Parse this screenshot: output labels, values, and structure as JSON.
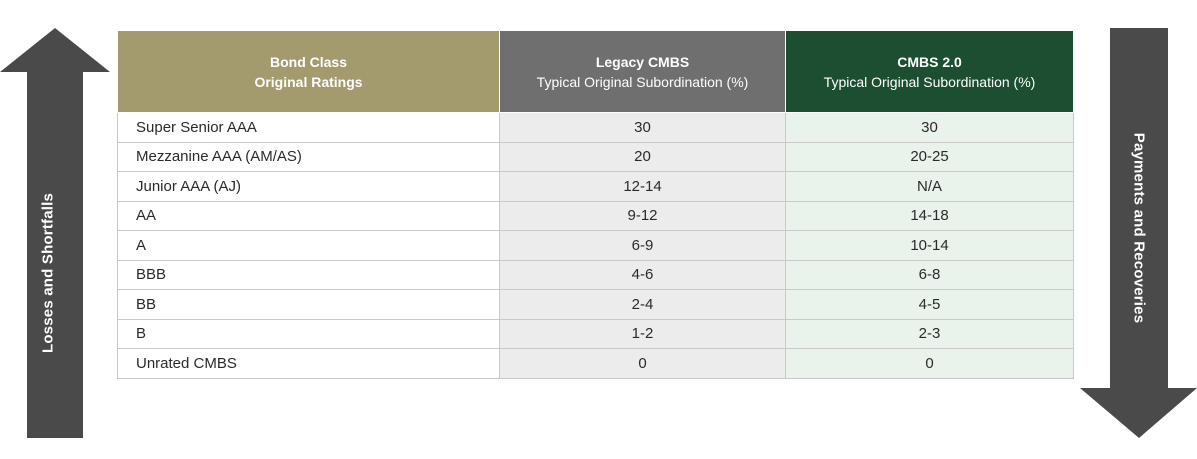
{
  "arrows": {
    "left_label": "Losses and Shortfalls",
    "right_label": "Payments and Recoveries",
    "color": "#4a4a4a"
  },
  "table": {
    "headers": [
      {
        "title": "Bond Class",
        "subtitle": "Original Ratings",
        "color": "#a39a6e"
      },
      {
        "title": "Legacy CMBS",
        "subtitle": "Typical Original Subordination (%)",
        "color": "#6f6f6f"
      },
      {
        "title": "CMBS 2.0",
        "subtitle": "Typical Original Subordination (%)",
        "color": "#1c4f32"
      }
    ],
    "rows": [
      {
        "class": "Super Senior AAA",
        "legacy": "30",
        "cmbs2": "30"
      },
      {
        "class": "Mezzanine AAA (AM/AS)",
        "legacy": "20",
        "cmbs2": "20-25"
      },
      {
        "class": "Junior AAA (AJ)",
        "legacy": "12-14",
        "cmbs2": "N/A"
      },
      {
        "class": "AA",
        "legacy": "9-12",
        "cmbs2": "14-18"
      },
      {
        "class": "A",
        "legacy": "6-9",
        "cmbs2": "10-14"
      },
      {
        "class": "BBB",
        "legacy": "4-6",
        "cmbs2": "6-8"
      },
      {
        "class": "BB",
        "legacy": "2-4",
        "cmbs2": "4-5"
      },
      {
        "class": "B",
        "legacy": "1-2",
        "cmbs2": "2-3"
      },
      {
        "class": "Unrated CMBS",
        "legacy": "0",
        "cmbs2": "0"
      }
    ]
  }
}
